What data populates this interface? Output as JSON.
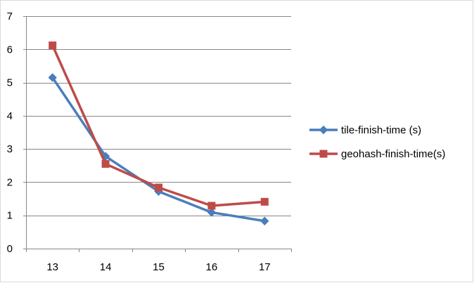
{
  "chart_data": {
    "type": "line",
    "categories": [
      "13",
      "14",
      "15",
      "16",
      "17"
    ],
    "series": [
      {
        "name": "tile-finish-time (s)",
        "values": [
          5.15,
          2.78,
          1.72,
          1.09,
          0.83
        ],
        "color": "#4a7ebb",
        "marker": "diamond"
      },
      {
        "name": "geohash-finish-time(s)",
        "values": [
          6.12,
          2.55,
          1.84,
          1.29,
          1.41
        ],
        "color": "#be4b48",
        "marker": "square"
      }
    ],
    "title": "",
    "xlabel": "",
    "ylabel": "",
    "ylim": [
      0,
      7
    ],
    "yticks": [
      "0",
      "1",
      "2",
      "3",
      "4",
      "5",
      "6",
      "7"
    ],
    "grid": true,
    "legend_position": "right"
  }
}
